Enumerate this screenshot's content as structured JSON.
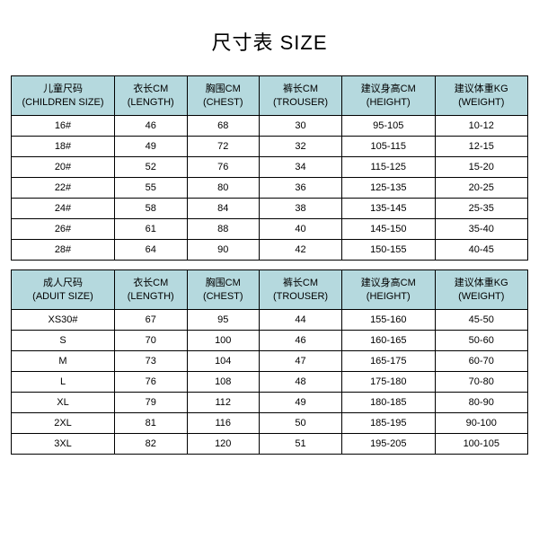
{
  "title": "尺寸表 SIZE",
  "colors": {
    "header_bg": "#b5d9de",
    "border": "#000000",
    "text": "#000000",
    "background": "#ffffff"
  },
  "columns": [
    {
      "cn": "儿童尺码",
      "en": "(CHILDREN SIZE)"
    },
    {
      "cn": "衣长CM",
      "en": "(LENGTH)"
    },
    {
      "cn": "胸围CM",
      "en": "(CHEST)"
    },
    {
      "cn": "裤长CM",
      "en": "(TROUSER)"
    },
    {
      "cn": "建议身高CM",
      "en": "(HEIGHT)"
    },
    {
      "cn": "建议体重KG",
      "en": "(WEIGHT)"
    }
  ],
  "children_rows": [
    [
      "16#",
      "46",
      "68",
      "30",
      "95-105",
      "10-12"
    ],
    [
      "18#",
      "49",
      "72",
      "32",
      "105-115",
      "12-15"
    ],
    [
      "20#",
      "52",
      "76",
      "34",
      "115-125",
      "15-20"
    ],
    [
      "22#",
      "55",
      "80",
      "36",
      "125-135",
      "20-25"
    ],
    [
      "24#",
      "58",
      "84",
      "38",
      "135-145",
      "25-35"
    ],
    [
      "26#",
      "61",
      "88",
      "40",
      "145-150",
      "35-40"
    ],
    [
      "28#",
      "64",
      "90",
      "42",
      "150-155",
      "40-45"
    ]
  ],
  "adult_columns": [
    {
      "cn": "成人尺码",
      "en": "(ADUIT SIZE)"
    },
    {
      "cn": "衣长CM",
      "en": "(LENGTH)"
    },
    {
      "cn": "胸围CM",
      "en": "(CHEST)"
    },
    {
      "cn": "裤长CM",
      "en": "(TROUSER)"
    },
    {
      "cn": "建议身高CM",
      "en": "(HEIGHT)"
    },
    {
      "cn": "建议体重KG",
      "en": "(WEIGHT)"
    }
  ],
  "adult_rows": [
    [
      "XS30#",
      "67",
      "95",
      "44",
      "155-160",
      "45-50"
    ],
    [
      "S",
      "70",
      "100",
      "46",
      "160-165",
      "50-60"
    ],
    [
      "M",
      "73",
      "104",
      "47",
      "165-175",
      "60-70"
    ],
    [
      "L",
      "76",
      "108",
      "48",
      "175-180",
      "70-80"
    ],
    [
      "XL",
      "79",
      "112",
      "49",
      "180-185",
      "80-90"
    ],
    [
      "2XL",
      "81",
      "116",
      "50",
      "185-195",
      "90-100"
    ],
    [
      "3XL",
      "82",
      "120",
      "51",
      "195-205",
      "100-105"
    ]
  ]
}
